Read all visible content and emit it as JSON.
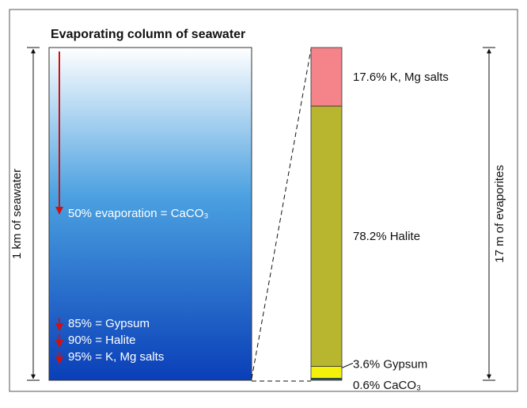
{
  "title": "Evaporating column of seawater",
  "left_axis_label": "1 km of seawater",
  "right_axis_label": "17 m of evaporites",
  "stages": [
    {
      "evaporation": {
        "value": 50,
        "label": "50%"
      },
      "text": "evaporation = CaCO₃"
    },
    {
      "evaporation": {
        "value": 85,
        "label": "85%"
      },
      "text": "= Gypsum"
    },
    {
      "evaporation": {
        "value": 90,
        "label": "90%"
      },
      "text": "= Halite"
    },
    {
      "evaporation": {
        "value": 95,
        "label": "95%"
      },
      "text": "= K, Mg salts"
    }
  ],
  "layers": [
    {
      "share": {
        "value": 17.6,
        "label": "17.6%"
      },
      "mineral": "K, Mg salts",
      "color": "#f4838a"
    },
    {
      "share": {
        "value": 78.2,
        "label": "78.2%"
      },
      "mineral": "Halite",
      "color": "#b8b52e"
    },
    {
      "share": {
        "value": 3.6,
        "label": "3.6%"
      },
      "mineral": "Gypsum",
      "color": "#f4f20a"
    },
    {
      "share": {
        "value": 0.6,
        "label": "0.6%"
      },
      "mineral": "CaCO₃",
      "color": "#1f5f5a"
    }
  ]
}
